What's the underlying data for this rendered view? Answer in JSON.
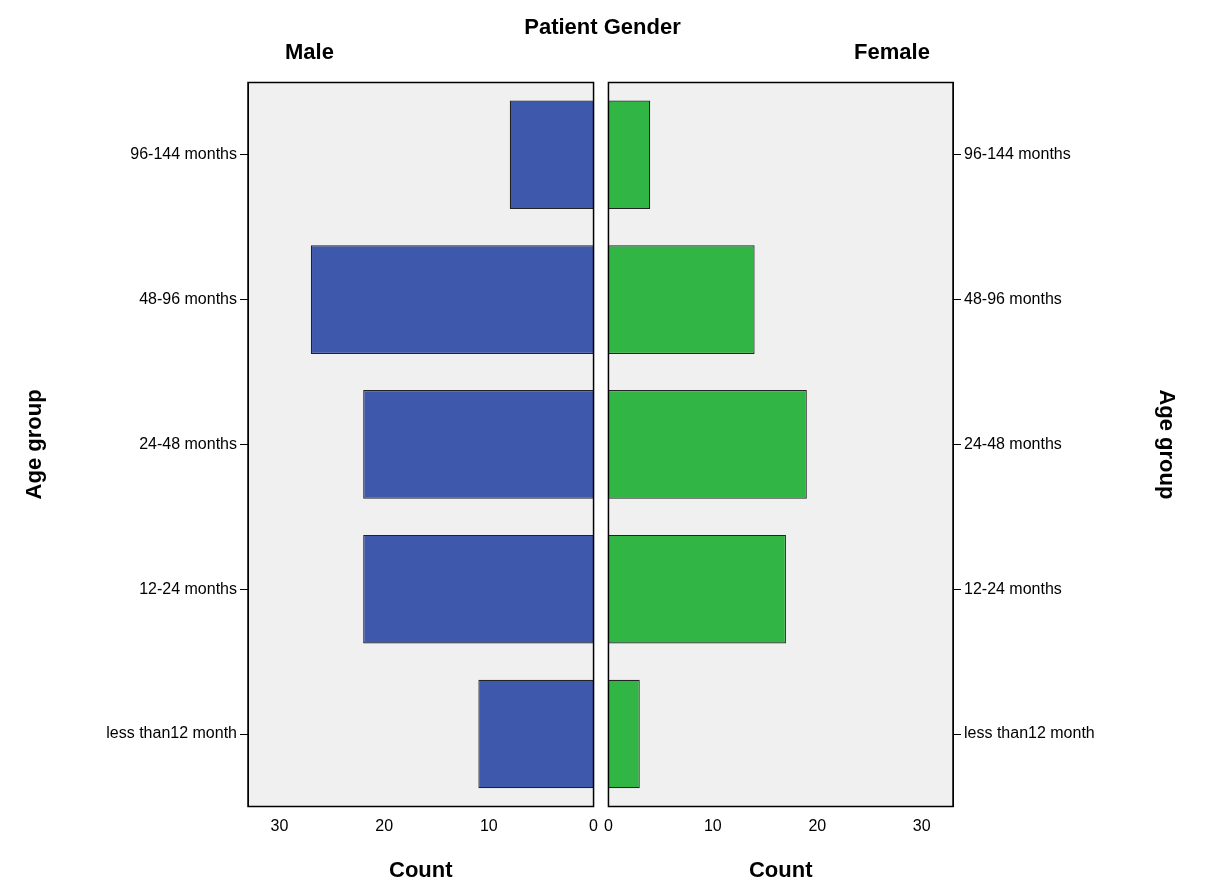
{
  "chart_data": [
    {
      "type": "bar",
      "orientation": "horizontal",
      "title": "Male",
      "xlabel": "Count",
      "ylabel": "Age group",
      "annotations": [
        "Patient Gender"
      ],
      "categories": [
        "96-144 months",
        "48-96 months",
        "24-48 months",
        "12-24 months",
        "less than12 month"
      ],
      "values": [
        8,
        27,
        22,
        22,
        11
      ],
      "color": "#3e58ac",
      "xlim": [
        33,
        0
      ],
      "xticks": [
        30,
        20,
        10,
        0
      ],
      "grid": false,
      "legend": false
    },
    {
      "type": "bar",
      "orientation": "horizontal",
      "title": "Female",
      "xlabel": "Count",
      "ylabel": "Age group",
      "categories": [
        "96-144 months",
        "48-96 months",
        "24-48 months",
        "12-24 months",
        "less than12 month"
      ],
      "values": [
        4,
        14,
        19,
        17,
        3
      ],
      "color": "#31b646",
      "xlim": [
        0,
        33
      ],
      "xticks": [
        0,
        10,
        20,
        30
      ],
      "grid": false,
      "legend": false
    }
  ]
}
